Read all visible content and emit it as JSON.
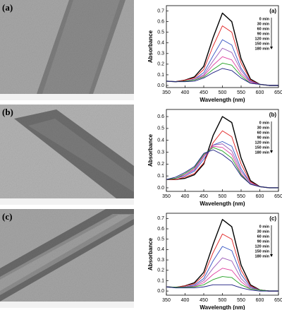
{
  "images": [
    {
      "label": "(a)"
    },
    {
      "label": "(b)"
    },
    {
      "label": "(c)"
    }
  ],
  "chart_data": [
    {
      "type": "line",
      "label": "(a)",
      "xlabel": "Wavelength (nm)",
      "ylabel": "Absorbance",
      "x": [
        350,
        375,
        400,
        425,
        450,
        475,
        500,
        525,
        550,
        575,
        600,
        625,
        650
      ],
      "xlim": [
        350,
        650
      ],
      "xticks": [
        350,
        400,
        450,
        500,
        550,
        600,
        650
      ],
      "ylim": [
        -0.02,
        0.75
      ],
      "yticks": [
        {
          "value": 0,
          "label": "0.0"
        },
        0.1,
        0.2,
        0.3,
        0.4,
        0.5,
        0.6,
        0.7
      ],
      "series": [
        {
          "name": "0 min",
          "color": "#000000",
          "values": [
            0.04,
            0.035,
            0.05,
            0.08,
            0.18,
            0.45,
            0.68,
            0.6,
            0.25,
            0.06,
            0.01,
            0,
            0
          ]
        },
        {
          "name": "30 min",
          "color": "#e02020",
          "values": [
            0.04,
            0.035,
            0.05,
            0.07,
            0.15,
            0.37,
            0.56,
            0.5,
            0.21,
            0.05,
            0.01,
            0,
            0
          ]
        },
        {
          "name": "60 min",
          "color": "#3050c0",
          "values": [
            0.04,
            0.035,
            0.04,
            0.06,
            0.12,
            0.28,
            0.43,
            0.38,
            0.16,
            0.04,
            0.01,
            0,
            0
          ]
        },
        {
          "name": "90 min",
          "color": "#9b59b6",
          "values": [
            0.04,
            0.035,
            0.04,
            0.06,
            0.1,
            0.23,
            0.35,
            0.31,
            0.14,
            0.03,
            0.01,
            0,
            0
          ]
        },
        {
          "name": "120 min",
          "color": "#e040a0",
          "values": [
            0.04,
            0.035,
            0.04,
            0.05,
            0.09,
            0.19,
            0.27,
            0.24,
            0.11,
            0.03,
            0.01,
            0,
            0
          ]
        },
        {
          "name": "150 min",
          "color": "#20a020",
          "values": [
            0.04,
            0.035,
            0.04,
            0.05,
            0.08,
            0.15,
            0.21,
            0.19,
            0.09,
            0.02,
            0.01,
            0,
            0
          ]
        },
        {
          "name": "180 min",
          "color": "#1a1a80",
          "values": [
            0.04,
            0.035,
            0.035,
            0.04,
            0.07,
            0.12,
            0.16,
            0.14,
            0.07,
            0.02,
            0.01,
            0,
            0
          ]
        }
      ]
    },
    {
      "type": "line",
      "label": "(b)",
      "xlabel": "Wavelength (nm)",
      "ylabel": "Absorbance",
      "x": [
        350,
        375,
        400,
        425,
        450,
        475,
        500,
        525,
        550,
        575,
        600,
        625,
        650
      ],
      "xlim": [
        350,
        650
      ],
      "xticks": [
        350,
        400,
        450,
        500,
        550,
        600,
        650
      ],
      "ylim": [
        -0.03,
        0.66
      ],
      "yticks": [
        {
          "value": 0,
          "label": "0.0"
        },
        0.1,
        0.2,
        0.3,
        0.4,
        0.5,
        0.6
      ],
      "series": [
        {
          "name": "0 min",
          "color": "#000000",
          "values": [
            0.07,
            0.07,
            0.08,
            0.11,
            0.2,
            0.44,
            0.6,
            0.55,
            0.25,
            0.06,
            0.01,
            0,
            0
          ]
        },
        {
          "name": "30 min",
          "color": "#e02020",
          "values": [
            0.07,
            0.07,
            0.09,
            0.12,
            0.21,
            0.38,
            0.48,
            0.43,
            0.2,
            0.05,
            0.01,
            0,
            0
          ]
        },
        {
          "name": "60 min",
          "color": "#3050c0",
          "values": [
            0.07,
            0.08,
            0.1,
            0.14,
            0.24,
            0.36,
            0.39,
            0.35,
            0.16,
            0.04,
            0.01,
            0,
            0
          ]
        },
        {
          "name": "90 min",
          "color": "#9b59b6",
          "values": [
            0.07,
            0.08,
            0.11,
            0.15,
            0.26,
            0.36,
            0.37,
            0.31,
            0.14,
            0.04,
            0.01,
            0,
            0
          ]
        },
        {
          "name": "120 min",
          "color": "#e040a0",
          "values": [
            0.07,
            0.08,
            0.11,
            0.16,
            0.27,
            0.35,
            0.34,
            0.28,
            0.12,
            0.03,
            0.01,
            0,
            0
          ]
        },
        {
          "name": "150 min",
          "color": "#20a020",
          "values": [
            0.07,
            0.08,
            0.12,
            0.17,
            0.28,
            0.34,
            0.31,
            0.25,
            0.11,
            0.03,
            0.01,
            0,
            0
          ]
        },
        {
          "name": "180 min",
          "color": "#1a1a80",
          "values": [
            0.07,
            0.09,
            0.13,
            0.18,
            0.29,
            0.32,
            0.28,
            0.22,
            0.1,
            0.03,
            0.01,
            0,
            0
          ]
        }
      ]
    },
    {
      "type": "line",
      "label": "(c)",
      "xlabel": "Wavelength (nm)",
      "ylabel": "Absorbance",
      "x": [
        350,
        375,
        400,
        425,
        450,
        475,
        500,
        525,
        550,
        575,
        600,
        625,
        650
      ],
      "xlim": [
        350,
        650
      ],
      "xticks": [
        350,
        400,
        450,
        500,
        550,
        600,
        650
      ],
      "ylim": [
        -0.04,
        0.75
      ],
      "yticks": [
        {
          "value": 0,
          "label": "0.0"
        },
        0.1,
        0.2,
        0.3,
        0.4,
        0.5,
        0.6,
        0.7
      ],
      "series": [
        {
          "name": "0 min",
          "color": "#000000",
          "values": [
            0.04,
            0.035,
            0.05,
            0.08,
            0.18,
            0.45,
            0.69,
            0.62,
            0.25,
            0.06,
            0.01,
            0,
            0
          ]
        },
        {
          "name": "30 min",
          "color": "#e02020",
          "values": [
            0.04,
            0.035,
            0.05,
            0.07,
            0.15,
            0.37,
            0.55,
            0.5,
            0.2,
            0.05,
            0.01,
            0,
            0
          ]
        },
        {
          "name": "60 min",
          "color": "#3050c0",
          "values": [
            0.04,
            0.035,
            0.04,
            0.06,
            0.12,
            0.29,
            0.43,
            0.39,
            0.16,
            0.04,
            0.01,
            0,
            0
          ]
        },
        {
          "name": "90 min",
          "color": "#9b59b6",
          "values": [
            0.04,
            0.035,
            0.04,
            0.05,
            0.1,
            0.22,
            0.32,
            0.29,
            0.12,
            0.03,
            0.01,
            0,
            0
          ]
        },
        {
          "name": "120 min",
          "color": "#e040a0",
          "values": [
            0.04,
            0.035,
            0.035,
            0.045,
            0.08,
            0.16,
            0.22,
            0.2,
            0.09,
            0.02,
            0.01,
            0,
            0
          ]
        },
        {
          "name": "150 min",
          "color": "#20a020",
          "values": [
            0.04,
            0.035,
            0.035,
            0.04,
            0.06,
            0.11,
            0.14,
            0.13,
            0.06,
            0.02,
            0.01,
            0,
            0
          ]
        },
        {
          "name": "180 min",
          "color": "#1a1a80",
          "values": [
            0.04,
            0.03,
            0.03,
            0.03,
            0.04,
            0.06,
            0.06,
            0.06,
            0.03,
            0.01,
            0,
            0,
            0
          ]
        }
      ]
    }
  ]
}
